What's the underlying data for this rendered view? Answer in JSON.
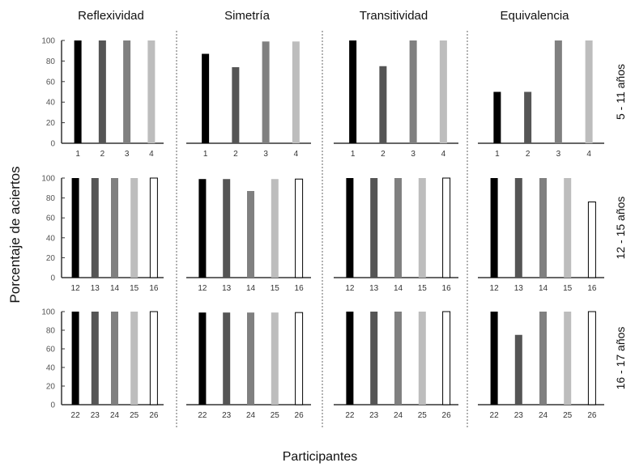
{
  "chart_data": {
    "type": "bar",
    "xlabel": "Participantes",
    "ylabel": "Porcentaje de aciertos",
    "ylim": [
      0,
      100
    ],
    "yticks": [
      0,
      20,
      40,
      60,
      80,
      100
    ],
    "grid": false,
    "columns": [
      "Reflexividad",
      "Simetría",
      "Transitividad",
      "Equivalencia"
    ],
    "rows": [
      {
        "label": "5 - 11 años",
        "participants": [
          "1",
          "2",
          "3",
          "4"
        ],
        "values": {
          "Reflexividad": [
            100,
            100,
            100,
            100
          ],
          "Simetría": [
            87,
            74,
            99,
            99
          ],
          "Transitividad": [
            100,
            75,
            100,
            100
          ],
          "Equivalencia": [
            50,
            50,
            100,
            100
          ]
        }
      },
      {
        "label": "12 - 15 años",
        "participants": [
          "12",
          "13",
          "14",
          "15",
          "16"
        ],
        "values": {
          "Reflexividad": [
            100,
            100,
            100,
            100,
            100
          ],
          "Simetría": [
            99,
            99,
            87,
            99,
            99
          ],
          "Transitividad": [
            100,
            100,
            100,
            100,
            100
          ],
          "Equivalencia": [
            100,
            100,
            100,
            100,
            76
          ]
        }
      },
      {
        "label": "16 - 17 años",
        "participants": [
          "22",
          "23",
          "24",
          "25",
          "26"
        ],
        "values": {
          "Reflexividad": [
            100,
            100,
            100,
            100,
            100
          ],
          "Simetría": [
            99,
            99,
            99,
            99,
            99
          ],
          "Transitividad": [
            100,
            100,
            100,
            100,
            100
          ],
          "Equivalencia": [
            100,
            75,
            100,
            100,
            100
          ]
        }
      }
    ],
    "bar_colors": [
      "#000000",
      "#555555",
      "#808080",
      "#bdbdbd",
      "#ffffff"
    ]
  }
}
